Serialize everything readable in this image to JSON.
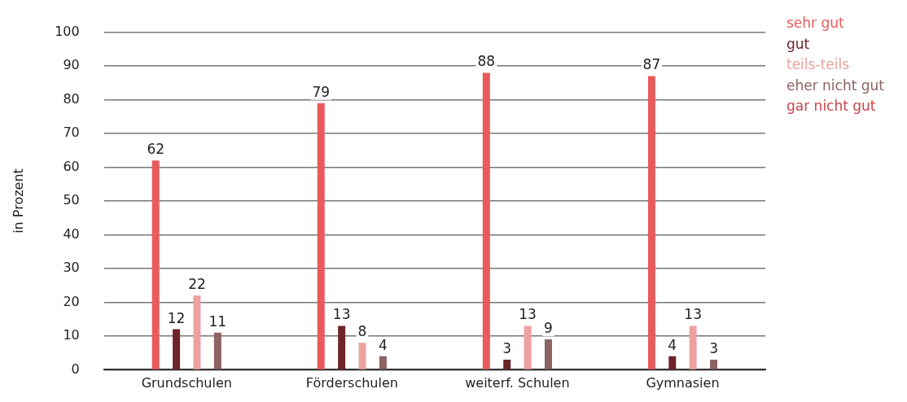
{
  "chart_data": {
    "type": "bar",
    "ylabel": "in Prozent",
    "categories": [
      "Grundschulen",
      "Förderschulen",
      "weiterf. Schulen",
      "Gymnasien"
    ],
    "series": [
      {
        "name": "sehr gut",
        "color": "#e95a5c",
        "values": [
          62,
          79,
          88,
          87
        ]
      },
      {
        "name": "gut",
        "color": "#6e242a",
        "values": [
          12,
          13,
          3,
          4
        ]
      },
      {
        "name": "teils-teils",
        "color": "#eda1a0",
        "values": [
          22,
          8,
          13,
          13
        ]
      },
      {
        "name": "eher nicht gut",
        "color": "#8c6262",
        "values": [
          11,
          4,
          9,
          3
        ]
      },
      {
        "name": "gar nicht gut",
        "color": "#c8454c",
        "values": [
          null,
          null,
          null,
          null
        ]
      }
    ],
    "ylim": [
      0,
      100
    ],
    "yticks": [
      0,
      10,
      20,
      30,
      40,
      50,
      60,
      70,
      80,
      90,
      100
    ],
    "grid": "y",
    "legend": "top right",
    "data_labels": true
  }
}
